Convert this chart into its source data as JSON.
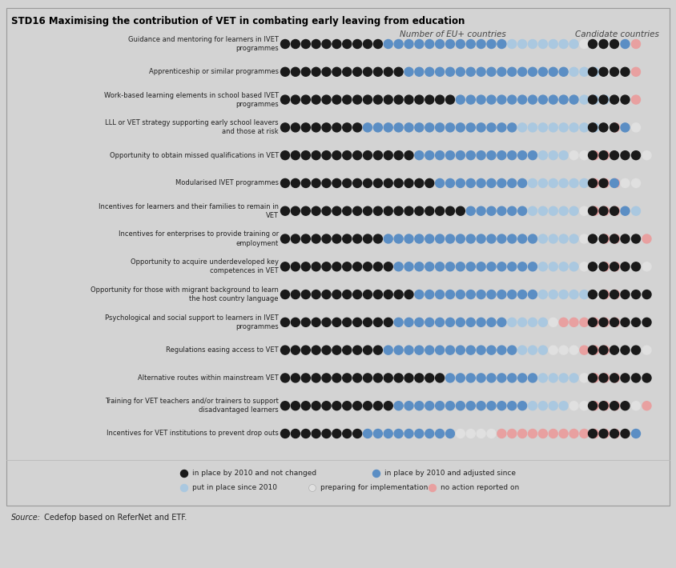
{
  "title": "STD16 Maximising the contribution of VET in combating early leaving from education",
  "col_header_eu": "Number of EU+ countries",
  "col_header_cand": "Candidate countries",
  "source_italic": "Source:",
  "source_normal": " Cedefop based on ReferNet and ETF.",
  "background_color": "#d3d3d3",
  "border_color": "#aaaaaa",
  "legend": [
    {
      "label": "in place by 2010 and not changed",
      "color": "#1a1a1a"
    },
    {
      "label": "in place by 2010 and adjusted since",
      "color": "#5b8ec4"
    },
    {
      "label": "put in place since 2010",
      "color": "#aac8e0"
    },
    {
      "label": "preparing for implementation",
      "color": "#e0e0e0"
    },
    {
      "label": "no action reported on",
      "color": "#e8a0a0"
    }
  ],
  "rows": [
    {
      "label": "Guidance and mentoring for learners in IVET\nprogrammes",
      "eu_dots": [
        "k",
        "k",
        "k",
        "k",
        "k",
        "k",
        "k",
        "k",
        "k",
        "k",
        "b",
        "b",
        "b",
        "b",
        "b",
        "b",
        "b",
        "b",
        "b",
        "b",
        "b",
        "b",
        "lb",
        "lb",
        "lb",
        "lb",
        "lb",
        "lb",
        "lb",
        "w",
        "w",
        "w",
        "w"
      ],
      "cand_dots": [
        "k",
        "k",
        "k",
        "b",
        "r"
      ]
    },
    {
      "label": "Apprenticeship or similar programmes",
      "eu_dots": [
        "k",
        "k",
        "k",
        "k",
        "k",
        "k",
        "k",
        "k",
        "k",
        "k",
        "k",
        "k",
        "b",
        "b",
        "b",
        "b",
        "b",
        "b",
        "b",
        "b",
        "b",
        "b",
        "b",
        "b",
        "b",
        "b",
        "b",
        "b",
        "lb",
        "lb",
        "lb",
        "w",
        "w"
      ],
      "cand_dots": [
        "k",
        "k",
        "k",
        "k",
        "r"
      ]
    },
    {
      "label": "Work-based learning elements in school based IVET\nprogrammes",
      "eu_dots": [
        "k",
        "k",
        "k",
        "k",
        "k",
        "k",
        "k",
        "k",
        "k",
        "k",
        "k",
        "k",
        "k",
        "k",
        "k",
        "k",
        "k",
        "b",
        "b",
        "b",
        "b",
        "b",
        "b",
        "b",
        "b",
        "b",
        "b",
        "b",
        "b",
        "lb",
        "lb",
        "lb",
        "w"
      ],
      "cand_dots": [
        "k",
        "k",
        "k",
        "k",
        "r"
      ]
    },
    {
      "label": "LLL or VET strategy supporting early school leavers\nand those at risk",
      "eu_dots": [
        "k",
        "k",
        "k",
        "k",
        "k",
        "k",
        "k",
        "k",
        "b",
        "b",
        "b",
        "b",
        "b",
        "b",
        "b",
        "b",
        "b",
        "b",
        "b",
        "b",
        "b",
        "b",
        "b",
        "lb",
        "lb",
        "lb",
        "lb",
        "lb",
        "lb",
        "lb",
        "lb",
        "w",
        "r"
      ],
      "cand_dots": [
        "k",
        "k",
        "k",
        "b",
        "w"
      ]
    },
    {
      "label": "Opportunity to obtain missed qualifications in VET",
      "eu_dots": [
        "k",
        "k",
        "k",
        "k",
        "k",
        "k",
        "k",
        "k",
        "k",
        "k",
        "k",
        "k",
        "k",
        "b",
        "b",
        "b",
        "b",
        "b",
        "b",
        "b",
        "b",
        "b",
        "b",
        "b",
        "b",
        "lb",
        "lb",
        "lb",
        "w",
        "w",
        "r",
        "r",
        "w"
      ],
      "cand_dots": [
        "k",
        "k",
        "k",
        "k",
        "k",
        "w"
      ]
    },
    {
      "label": "Modularised IVET programmes",
      "eu_dots": [
        "k",
        "k",
        "k",
        "k",
        "k",
        "k",
        "k",
        "k",
        "k",
        "k",
        "k",
        "k",
        "k",
        "k",
        "k",
        "b",
        "b",
        "b",
        "b",
        "b",
        "b",
        "b",
        "b",
        "b",
        "lb",
        "lb",
        "lb",
        "lb",
        "lb",
        "lb",
        "r",
        "r",
        "r"
      ],
      "cand_dots": [
        "k",
        "k",
        "b",
        "w",
        "w"
      ]
    },
    {
      "label": "Incentives for learners and their families to remain in\nVET",
      "eu_dots": [
        "k",
        "k",
        "k",
        "k",
        "k",
        "k",
        "k",
        "k",
        "k",
        "k",
        "k",
        "k",
        "k",
        "k",
        "k",
        "k",
        "k",
        "k",
        "b",
        "b",
        "b",
        "b",
        "b",
        "b",
        "lb",
        "lb",
        "lb",
        "lb",
        "lb",
        "w",
        "r",
        "r",
        "r"
      ],
      "cand_dots": [
        "k",
        "k",
        "k",
        "b",
        "lb"
      ]
    },
    {
      "label": "Incentives for enterprises to provide training or\nemployment",
      "eu_dots": [
        "k",
        "k",
        "k",
        "k",
        "k",
        "k",
        "k",
        "k",
        "k",
        "k",
        "b",
        "b",
        "b",
        "b",
        "b",
        "b",
        "b",
        "b",
        "b",
        "b",
        "b",
        "b",
        "b",
        "b",
        "b",
        "lb",
        "lb",
        "lb",
        "lb",
        "w",
        "w",
        "r",
        "r"
      ],
      "cand_dots": [
        "k",
        "k",
        "k",
        "k",
        "k",
        "r"
      ]
    },
    {
      "label": "Opportunity to acquire underdeveloped key\ncompetences in VET",
      "eu_dots": [
        "k",
        "k",
        "k",
        "k",
        "k",
        "k",
        "k",
        "k",
        "k",
        "k",
        "k",
        "b",
        "b",
        "b",
        "b",
        "b",
        "b",
        "b",
        "b",
        "b",
        "b",
        "b",
        "b",
        "b",
        "b",
        "lb",
        "lb",
        "lb",
        "lb",
        "w",
        "w",
        "r",
        "r"
      ],
      "cand_dots": [
        "k",
        "k",
        "k",
        "k",
        "k",
        "w"
      ]
    },
    {
      "label": "Opportunity for those with migrant background to learn\nthe host country language",
      "eu_dots": [
        "k",
        "k",
        "k",
        "k",
        "k",
        "k",
        "k",
        "k",
        "k",
        "k",
        "k",
        "k",
        "k",
        "b",
        "b",
        "b",
        "b",
        "b",
        "b",
        "b",
        "b",
        "b",
        "b",
        "b",
        "b",
        "lb",
        "lb",
        "lb",
        "lb",
        "lb",
        "w",
        "r",
        "r"
      ],
      "cand_dots": [
        "k",
        "k",
        "k",
        "k",
        "k",
        "k"
      ]
    },
    {
      "label": "Psychological and social support to learners in IVET\nprogrammes",
      "eu_dots": [
        "k",
        "k",
        "k",
        "k",
        "k",
        "k",
        "k",
        "k",
        "k",
        "k",
        "k",
        "b",
        "b",
        "b",
        "b",
        "b",
        "b",
        "b",
        "b",
        "b",
        "b",
        "b",
        "lb",
        "lb",
        "lb",
        "lb",
        "w",
        "r",
        "r",
        "r",
        "r",
        "r",
        "r"
      ],
      "cand_dots": [
        "k",
        "k",
        "k",
        "k",
        "k",
        "k"
      ]
    },
    {
      "label": "Regulations easing access to VET",
      "eu_dots": [
        "k",
        "k",
        "k",
        "k",
        "k",
        "k",
        "k",
        "k",
        "k",
        "k",
        "b",
        "b",
        "b",
        "b",
        "b",
        "b",
        "b",
        "b",
        "b",
        "b",
        "b",
        "b",
        "b",
        "lb",
        "lb",
        "lb",
        "w",
        "w",
        "w",
        "r",
        "r",
        "r",
        "w"
      ],
      "cand_dots": [
        "k",
        "k",
        "k",
        "k",
        "k",
        "w"
      ]
    },
    {
      "label": "Alternative routes within mainstream VET",
      "eu_dots": [
        "k",
        "k",
        "k",
        "k",
        "k",
        "k",
        "k",
        "k",
        "k",
        "k",
        "k",
        "k",
        "k",
        "k",
        "k",
        "k",
        "b",
        "b",
        "b",
        "b",
        "b",
        "b",
        "b",
        "b",
        "b",
        "lb",
        "lb",
        "lb",
        "lb",
        "w",
        "r",
        "r",
        "r"
      ],
      "cand_dots": [
        "k",
        "k",
        "k",
        "k",
        "k",
        "k"
      ]
    },
    {
      "label": "Training for VET teachers and/or trainers to support\ndisadvantaged learners",
      "eu_dots": [
        "k",
        "k",
        "k",
        "k",
        "k",
        "k",
        "k",
        "k",
        "k",
        "k",
        "k",
        "b",
        "b",
        "b",
        "b",
        "b",
        "b",
        "b",
        "b",
        "b",
        "b",
        "b",
        "b",
        "b",
        "lb",
        "lb",
        "lb",
        "lb",
        "w",
        "w",
        "r",
        "r",
        "r"
      ],
      "cand_dots": [
        "k",
        "k",
        "k",
        "k",
        "w",
        "r"
      ]
    },
    {
      "label": "Incentives for VET institutions to prevent drop outs",
      "eu_dots": [
        "k",
        "k",
        "k",
        "k",
        "k",
        "k",
        "k",
        "k",
        "b",
        "b",
        "b",
        "b",
        "b",
        "b",
        "b",
        "b",
        "b",
        "w",
        "w",
        "w",
        "w",
        "r",
        "r",
        "r",
        "r",
        "r",
        "r",
        "r",
        "r",
        "r",
        "r",
        "r",
        "r"
      ],
      "cand_dots": [
        "k",
        "k",
        "k",
        "k",
        "b"
      ]
    }
  ],
  "dot_colors": {
    "k": "#1a1a1a",
    "b": "#5b8ec4",
    "lb": "#aac8e0",
    "w": "#e0e0e0",
    "r": "#e8a0a0"
  }
}
